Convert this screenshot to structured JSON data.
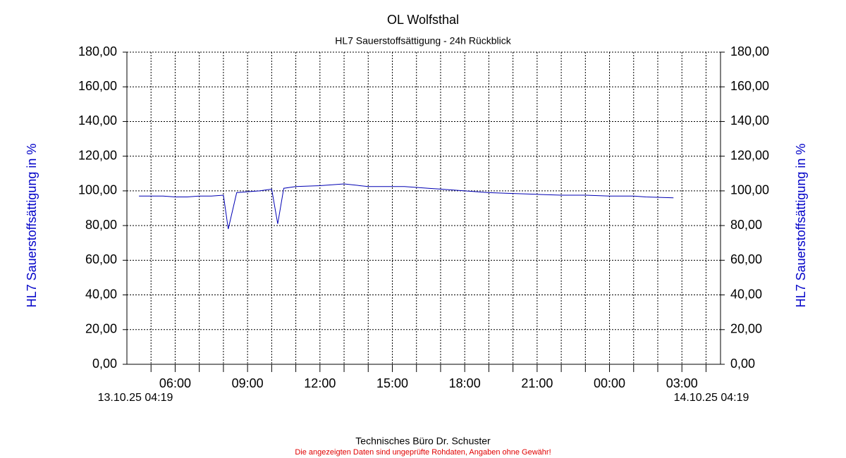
{
  "chart_data": {
    "type": "line",
    "title": "OL Wolfsthal",
    "subtitle": "HL7 Sauerstoffsättigung - 24h Rückblick",
    "y_label": "HL7 Sauerstoffsättigung in %",
    "start_label": "13.10.25 04:19",
    "end_label": "14.10.25 04:19",
    "footer": "Technisches Büro Dr. Schuster",
    "disclaimer": "Die angezeigten Daten sind ungeprüfte Rohdaten, Angaben ohne Gewähr!",
    "xlim": [
      4.0,
      28.6
    ],
    "xticks": [
      {
        "value": 6,
        "label": "06:00"
      },
      {
        "value": 9,
        "label": "09:00"
      },
      {
        "value": 12,
        "label": "12:00"
      },
      {
        "value": 15,
        "label": "15:00"
      },
      {
        "value": 18,
        "label": "18:00"
      },
      {
        "value": 21,
        "label": "21:00"
      },
      {
        "value": 24,
        "label": "00:00"
      },
      {
        "value": 27,
        "label": "03:00"
      }
    ],
    "xminor": [
      5,
      7,
      8,
      10,
      11,
      13,
      14,
      16,
      17,
      19,
      20,
      22,
      23,
      25,
      26,
      28
    ],
    "ylim": [
      0,
      180
    ],
    "yticks": [
      {
        "value": 0,
        "label": "0,00"
      },
      {
        "value": 20,
        "label": "20,00"
      },
      {
        "value": 40,
        "label": "40,00"
      },
      {
        "value": 60,
        "label": "60,00"
      },
      {
        "value": 80,
        "label": "80,00"
      },
      {
        "value": 100,
        "label": "100,00"
      },
      {
        "value": 120,
        "label": "120,00"
      },
      {
        "value": 140,
        "label": "140,00"
      },
      {
        "value": 160,
        "label": "160,00"
      },
      {
        "value": 180,
        "label": "180,00"
      }
    ],
    "grid": true,
    "series": [
      {
        "color": "#0000b4",
        "x": [
          4.5,
          5.5,
          6.0,
          6.5,
          7.0,
          7.5,
          8.0,
          8.2,
          8.55,
          9.0,
          9.5,
          10.0,
          10.25,
          10.5,
          11.0,
          12.0,
          13.0,
          14.0,
          15.0,
          15.5,
          16.5,
          17.0,
          18.0,
          19.0,
          20.0,
          21.0,
          22.0,
          23.0,
          24.0,
          25.0,
          25.5,
          26.65
        ],
        "values": [
          97,
          97,
          96.5,
          96.5,
          97,
          97,
          97.5,
          78,
          99,
          99.5,
          100,
          101,
          81,
          101.5,
          102.5,
          103,
          104,
          102.5,
          102.5,
          102.5,
          101.5,
          101,
          100,
          99,
          98.5,
          98,
          97.5,
          97.5,
          97,
          97,
          96.5,
          96
        ]
      }
    ]
  }
}
